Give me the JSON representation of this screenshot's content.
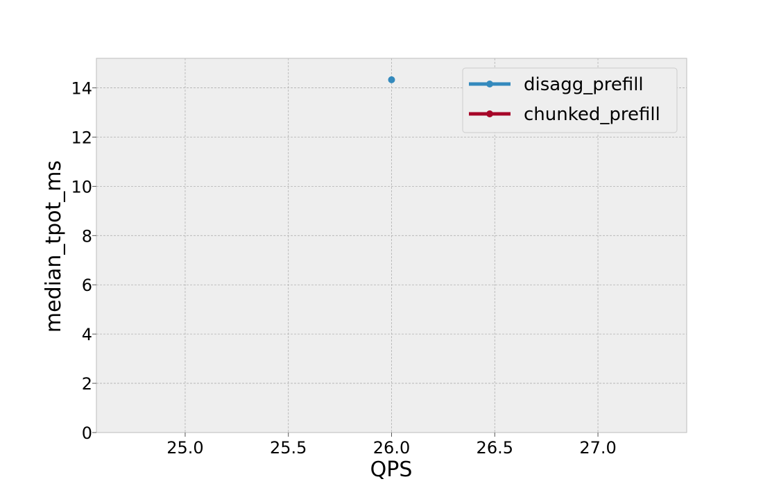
{
  "chart_data": {
    "type": "line",
    "title": "",
    "xlabel": "QPS",
    "ylabel": "median_tpot_ms",
    "xlim": [
      24.57,
      27.43
    ],
    "ylim": [
      0,
      15.2
    ],
    "xticks": [
      25.0,
      25.5,
      26.0,
      26.5,
      27.0
    ],
    "xtick_labels": [
      "25.0",
      "25.5",
      "26.0",
      "26.5",
      "27.0"
    ],
    "yticks": [
      0,
      2,
      4,
      6,
      8,
      10,
      12,
      14
    ],
    "ytick_labels": [
      "0",
      "2",
      "4",
      "6",
      "8",
      "10",
      "12",
      "14"
    ],
    "grid": true,
    "legend_position": "top-right",
    "series": [
      {
        "name": "disagg_prefill",
        "color": "#348abd",
        "points": [
          {
            "x": 26.0,
            "y": 14.33
          }
        ]
      },
      {
        "name": "chunked_prefill",
        "color": "#a60628",
        "points": []
      }
    ],
    "colors": {
      "plot_background": "#eeeeee",
      "grid": "#b0b0b0",
      "spine": "#bcbcbc"
    }
  }
}
